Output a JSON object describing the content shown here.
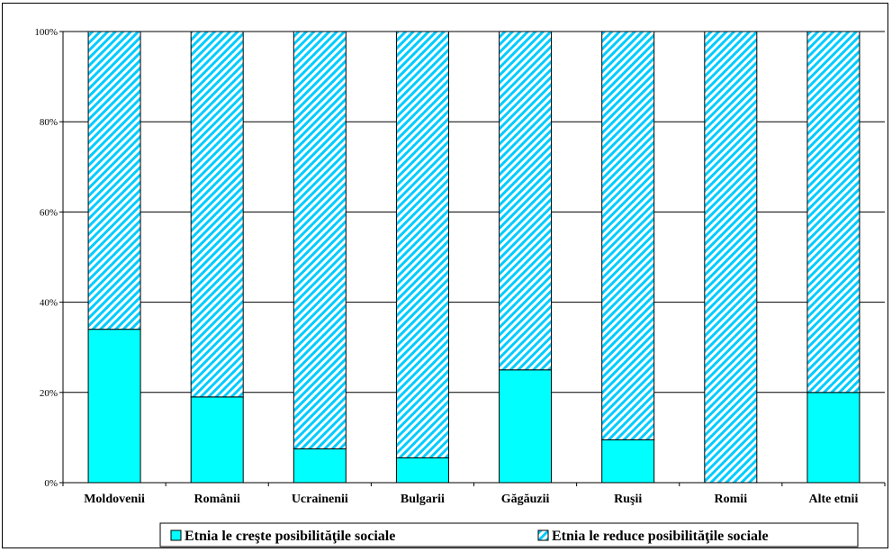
{
  "chart_data": {
    "type": "bar",
    "stacked": true,
    "title": "",
    "xlabel": "",
    "ylabel": "",
    "ylim": [
      0,
      100
    ],
    "y_ticks": [
      "0%",
      "20%",
      "40%",
      "60%",
      "80%",
      "100%"
    ],
    "grid": true,
    "legend_position": "bottom",
    "categories": [
      "Moldovenii",
      "Românii",
      "Ucrainenii",
      "Bulgarii",
      "Găgăuzii",
      "Ruşii",
      "Romii",
      "Alte etnii"
    ],
    "series": [
      {
        "name": "Etnia le creşte posibilităţile sociale",
        "values": [
          34,
          19,
          7.5,
          5.5,
          25,
          9.5,
          0,
          20
        ],
        "color": "#00ffff",
        "pattern": "solid"
      },
      {
        "name": "Etnia le reduce posibilităţile sociale",
        "values": [
          66,
          81,
          92.5,
          94.5,
          75,
          90.5,
          100,
          80
        ],
        "color": "#00ccff",
        "pattern": "hatched"
      }
    ]
  }
}
